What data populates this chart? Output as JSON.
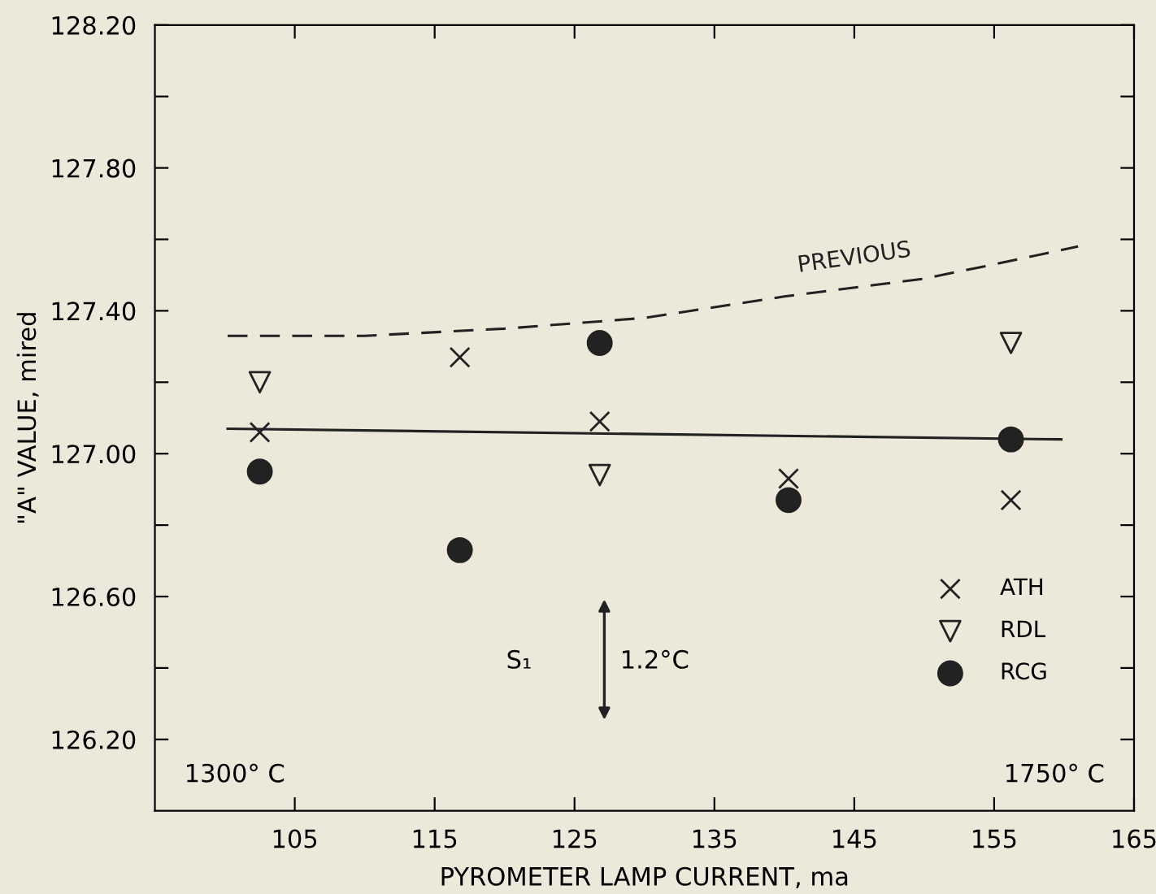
{
  "chart_data": {
    "type": "scatter",
    "xlabel": "PYROMETER LAMP CURRENT, ma",
    "ylabel": "\"A\" VALUE, mired",
    "xlim": [
      95,
      165
    ],
    "xticks": [
      105,
      115,
      125,
      135,
      145,
      155,
      165
    ],
    "ylim": [
      126.0,
      128.2
    ],
    "yticks": [
      {
        "value": 126.2,
        "label": "126.20"
      },
      {
        "value": 126.4,
        "label": null
      },
      {
        "value": 126.6,
        "label": "126.60"
      },
      {
        "value": 126.8,
        "label": null
      },
      {
        "value": 127.0,
        "label": "127.00"
      },
      {
        "value": 127.2,
        "label": null
      },
      {
        "value": 127.4,
        "label": "127.40"
      },
      {
        "value": 127.6,
        "label": null
      },
      {
        "value": 127.8,
        "label": "127.80"
      },
      {
        "value": 128.0,
        "label": null
      },
      {
        "value": 128.2,
        "label": "128.20"
      }
    ],
    "grid": false,
    "legend": "bottom right",
    "series": [
      {
        "name": "ATH",
        "color": "#222222",
        "marker": "cross",
        "x": [
          102.5,
          116.8,
          126.8,
          140.3,
          156.2
        ],
        "values": [
          127.06,
          127.27,
          127.09,
          126.93,
          126.87
        ]
      },
      {
        "name": "RDL",
        "color": "#222222",
        "marker": "triangle",
        "x": [
          102.5,
          126.8,
          156.2
        ],
        "values": [
          127.2,
          126.94,
          127.31
        ]
      },
      {
        "name": "RCG",
        "color": "#222222",
        "marker": "circle",
        "x": [
          102.5,
          116.8,
          126.8,
          140.3,
          156.2
        ],
        "values": [
          126.95,
          126.73,
          127.31,
          126.87,
          127.04
        ]
      },
      {
        "type": "line",
        "color": "#222222",
        "line_style": "solid",
        "x": [
          100.2,
          159.8
        ],
        "values": [
          127.07,
          127.04
        ]
      },
      {
        "type": "line",
        "name": "PREVIOUS",
        "color": "#222222",
        "line_style": "dashed",
        "x": [
          100.2,
          110,
          120,
          130,
          140,
          150,
          155,
          161
        ],
        "values": [
          127.33,
          127.33,
          127.35,
          127.38,
          127.44,
          127.49,
          127.53,
          127.58
        ]
      }
    ],
    "annotations": [
      "1300° C",
      "1750° C",
      "S₁",
      "1.2°C"
    ]
  }
}
